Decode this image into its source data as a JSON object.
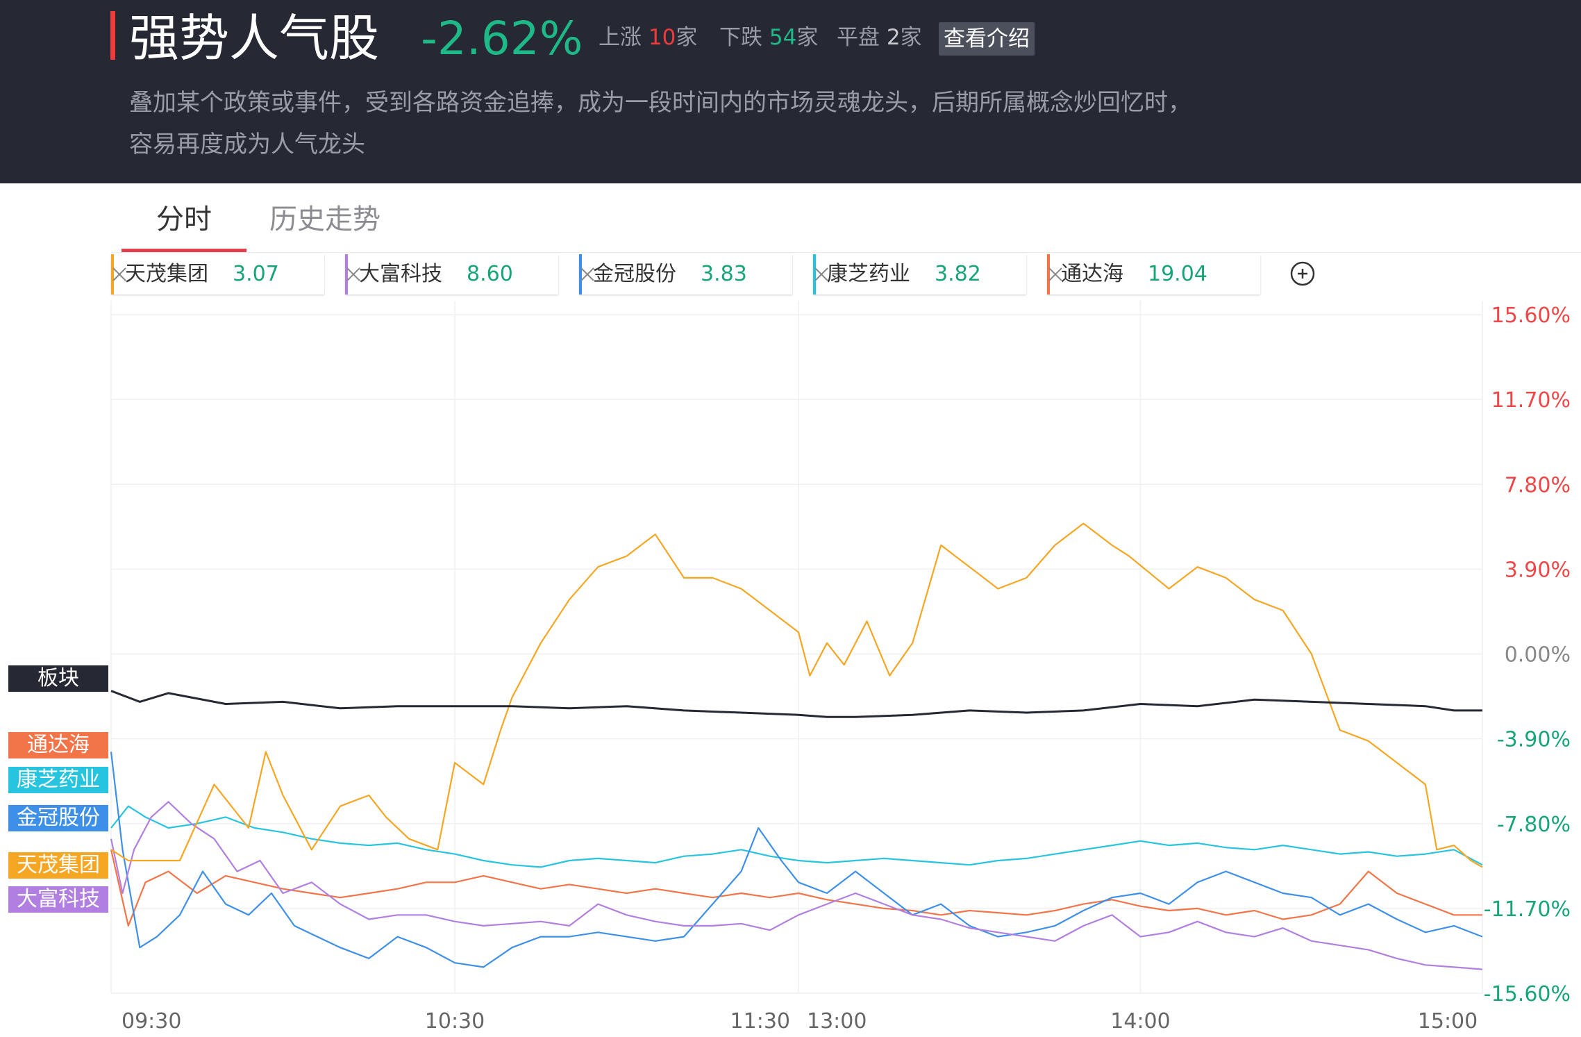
{
  "header": {
    "title": "强势人气股",
    "change": "-2.62%",
    "up_label": "上涨",
    "up_count": "10",
    "up_unit": "家",
    "down_label": "下跌",
    "down_count": "54",
    "down_unit": "家",
    "flat_label": "平盘",
    "flat_count": "2",
    "flat_unit": "家",
    "intro_button": "查看介绍",
    "description": "叠加某个政策或事件，受到各路资金追捧，成为一段时间内的市场灵魂龙头，后期所属概念炒回忆时，容易再度成为人气龙头"
  },
  "tabs": [
    {
      "label": "分时",
      "active": true
    },
    {
      "label": "历史走势",
      "active": false
    }
  ],
  "stocks": [
    {
      "name": "天茂集团",
      "price": "3.07",
      "color": "#f5a623"
    },
    {
      "name": "大富科技",
      "price": "8.60",
      "color": "#b07fe0"
    },
    {
      "name": "金冠股份",
      "price": "3.83",
      "color": "#3d8fe8"
    },
    {
      "name": "康芝药业",
      "price": "3.82",
      "color": "#27c4e0"
    },
    {
      "name": "通达海",
      "price": "19.04",
      "color": "#f27449"
    }
  ],
  "side_labels": {
    "sector": "板块",
    "s5": "通达海",
    "s4": "康芝药业",
    "s3": "金冠股份",
    "s1": "天茂集团",
    "s2": "大富科技"
  },
  "chart_data": {
    "type": "line",
    "x_ticks": [
      "09:30",
      "10:30",
      "11:30",
      "13:00",
      "14:00",
      "15:00"
    ],
    "y_ticks": [
      "15.60%",
      "11.70%",
      "7.80%",
      "3.90%",
      "0.00%",
      "-3.90%",
      "-7.80%",
      "-11.70%",
      "-15.60%"
    ],
    "ylim": [
      -15.6,
      15.6
    ],
    "x_unit": "trading minutes from 09:30 (0–240)",
    "grid": true,
    "series": [
      {
        "name": "板块",
        "color": "#262833",
        "x": [
          0,
          5,
          10,
          20,
          30,
          40,
          50,
          60,
          70,
          80,
          90,
          100,
          110,
          120,
          125,
          130,
          140,
          150,
          160,
          170,
          180,
          190,
          200,
          210,
          220,
          230,
          235,
          240
        ],
        "y": [
          -1.7,
          -2.2,
          -1.8,
          -2.3,
          -2.2,
          -2.5,
          -2.4,
          -2.4,
          -2.4,
          -2.5,
          -2.4,
          -2.6,
          -2.7,
          -2.8,
          -2.9,
          -2.9,
          -2.8,
          -2.6,
          -2.7,
          -2.6,
          -2.3,
          -2.4,
          -2.1,
          -2.2,
          -2.3,
          -2.4,
          -2.6,
          -2.6
        ]
      },
      {
        "name": "天茂集团",
        "color": "#f5a623",
        "x": [
          0,
          3,
          7,
          12,
          18,
          24,
          27,
          30,
          35,
          40,
          45,
          48,
          52,
          57,
          60,
          65,
          68,
          70,
          75,
          80,
          85,
          90,
          95,
          100,
          105,
          110,
          115,
          120,
          122,
          125,
          128,
          132,
          136,
          140,
          145,
          150,
          155,
          160,
          165,
          170,
          175,
          178,
          185,
          190,
          195,
          200,
          205,
          210,
          215,
          220,
          225,
          230,
          232,
          235,
          238,
          240
        ],
        "y": [
          -9.0,
          -9.5,
          -9.5,
          -9.5,
          -6.0,
          -8.0,
          -4.5,
          -6.5,
          -9.0,
          -7.0,
          -6.5,
          -7.5,
          -8.5,
          -9.0,
          -5.0,
          -6.0,
          -3.5,
          -2.0,
          0.5,
          2.5,
          4.0,
          4.5,
          5.5,
          3.5,
          3.5,
          3.0,
          2.0,
          1.0,
          -1.0,
          0.5,
          -0.5,
          1.5,
          -1.0,
          0.5,
          5.0,
          4.0,
          3.0,
          3.5,
          5.0,
          6.0,
          5.0,
          4.5,
          3.0,
          4.0,
          3.5,
          2.5,
          2.0,
          0.0,
          -3.5,
          -4.0,
          -5.0,
          -6.0,
          -9.0,
          -8.8,
          -9.5,
          -9.8
        ]
      },
      {
        "name": "大富科技",
        "color": "#b07fe0",
        "x": [
          0,
          2,
          4,
          7,
          10,
          14,
          18,
          22,
          26,
          30,
          35,
          40,
          45,
          50,
          55,
          60,
          65,
          70,
          75,
          80,
          85,
          90,
          95,
          100,
          105,
          110,
          115,
          120,
          125,
          130,
          135,
          140,
          145,
          150,
          155,
          160,
          165,
          170,
          175,
          180,
          185,
          190,
          195,
          200,
          205,
          210,
          215,
          220,
          225,
          230,
          235,
          240
        ],
        "y": [
          -8.5,
          -11.0,
          -9.0,
          -7.5,
          -6.8,
          -7.8,
          -8.5,
          -10.0,
          -9.5,
          -11.0,
          -10.5,
          -11.5,
          -12.2,
          -12.0,
          -12.0,
          -12.3,
          -12.5,
          -12.4,
          -12.3,
          -12.5,
          -11.5,
          -12.0,
          -12.3,
          -12.5,
          -12.5,
          -12.4,
          -12.7,
          -12.0,
          -11.5,
          -11.0,
          -11.5,
          -12.0,
          -12.2,
          -12.6,
          -12.8,
          -13.0,
          -13.2,
          -12.5,
          -12.0,
          -13.0,
          -12.8,
          -12.3,
          -12.8,
          -13.0,
          -12.6,
          -13.2,
          -13.4,
          -13.6,
          -14.0,
          -14.3,
          -14.4,
          -14.5
        ]
      },
      {
        "name": "金冠股份",
        "color": "#3d8fe8",
        "x": [
          0,
          2,
          5,
          8,
          12,
          16,
          20,
          24,
          28,
          32,
          36,
          40,
          45,
          50,
          55,
          60,
          65,
          70,
          75,
          80,
          85,
          90,
          95,
          100,
          105,
          110,
          113,
          117,
          120,
          125,
          130,
          135,
          140,
          145,
          150,
          155,
          160,
          165,
          170,
          175,
          180,
          185,
          190,
          195,
          200,
          205,
          210,
          215,
          220,
          225,
          230,
          235,
          240
        ],
        "y": [
          -4.5,
          -9.0,
          -13.5,
          -13.0,
          -12.0,
          -10.0,
          -11.5,
          -12.0,
          -11.0,
          -12.5,
          -13.0,
          -13.5,
          -14.0,
          -13.0,
          -13.5,
          -14.2,
          -14.4,
          -13.5,
          -13.0,
          -13.0,
          -12.8,
          -13.0,
          -13.2,
          -13.0,
          -11.5,
          -10.0,
          -8.0,
          -9.5,
          -10.5,
          -11.0,
          -10.0,
          -11.0,
          -12.0,
          -11.5,
          -12.5,
          -13.0,
          -12.8,
          -12.5,
          -11.8,
          -11.2,
          -11.0,
          -11.5,
          -10.5,
          -10.0,
          -10.5,
          -11.0,
          -11.2,
          -12.0,
          -11.5,
          -12.2,
          -12.8,
          -12.5,
          -13.0
        ]
      },
      {
        "name": "康芝药业",
        "color": "#27c4e0",
        "x": [
          0,
          3,
          6,
          10,
          15,
          20,
          25,
          30,
          35,
          40,
          45,
          50,
          55,
          60,
          65,
          70,
          75,
          80,
          85,
          90,
          95,
          100,
          105,
          110,
          115,
          120,
          125,
          130,
          135,
          140,
          145,
          150,
          155,
          160,
          165,
          170,
          175,
          180,
          185,
          190,
          195,
          200,
          205,
          210,
          215,
          220,
          225,
          230,
          235,
          240
        ],
        "y": [
          -8.0,
          -7.0,
          -7.5,
          -8.0,
          -7.8,
          -7.5,
          -8.0,
          -8.2,
          -8.5,
          -8.7,
          -8.8,
          -8.7,
          -9.0,
          -9.2,
          -9.5,
          -9.7,
          -9.8,
          -9.5,
          -9.4,
          -9.5,
          -9.6,
          -9.3,
          -9.2,
          -9.0,
          -9.3,
          -9.5,
          -9.6,
          -9.5,
          -9.4,
          -9.5,
          -9.6,
          -9.7,
          -9.5,
          -9.4,
          -9.2,
          -9.0,
          -8.8,
          -8.6,
          -8.8,
          -8.7,
          -8.9,
          -9.0,
          -8.8,
          -9.0,
          -9.2,
          -9.1,
          -9.3,
          -9.2,
          -9.0,
          -9.7
        ]
      },
      {
        "name": "通达海",
        "color": "#f27449",
        "x": [
          0,
          3,
          6,
          10,
          15,
          20,
          25,
          30,
          35,
          40,
          45,
          50,
          55,
          60,
          65,
          70,
          75,
          80,
          85,
          90,
          95,
          100,
          105,
          110,
          115,
          120,
          125,
          130,
          135,
          140,
          145,
          150,
          155,
          160,
          165,
          170,
          175,
          180,
          185,
          190,
          195,
          200,
          205,
          210,
          215,
          220,
          225,
          230,
          235,
          240
        ],
        "y": [
          -9.0,
          -12.5,
          -10.5,
          -10.0,
          -11.0,
          -10.2,
          -10.5,
          -10.8,
          -11.0,
          -11.2,
          -11.0,
          -10.8,
          -10.5,
          -10.5,
          -10.2,
          -10.5,
          -10.8,
          -10.6,
          -10.8,
          -11.0,
          -10.8,
          -11.0,
          -11.2,
          -11.0,
          -11.2,
          -11.0,
          -11.3,
          -11.5,
          -11.7,
          -11.8,
          -12.0,
          -11.8,
          -11.9,
          -12.0,
          -11.8,
          -11.5,
          -11.3,
          -11.6,
          -11.8,
          -11.7,
          -12.0,
          -11.8,
          -12.2,
          -12.0,
          -11.5,
          -10.0,
          -11.0,
          -11.5,
          -12.0,
          -12.0
        ]
      }
    ]
  }
}
